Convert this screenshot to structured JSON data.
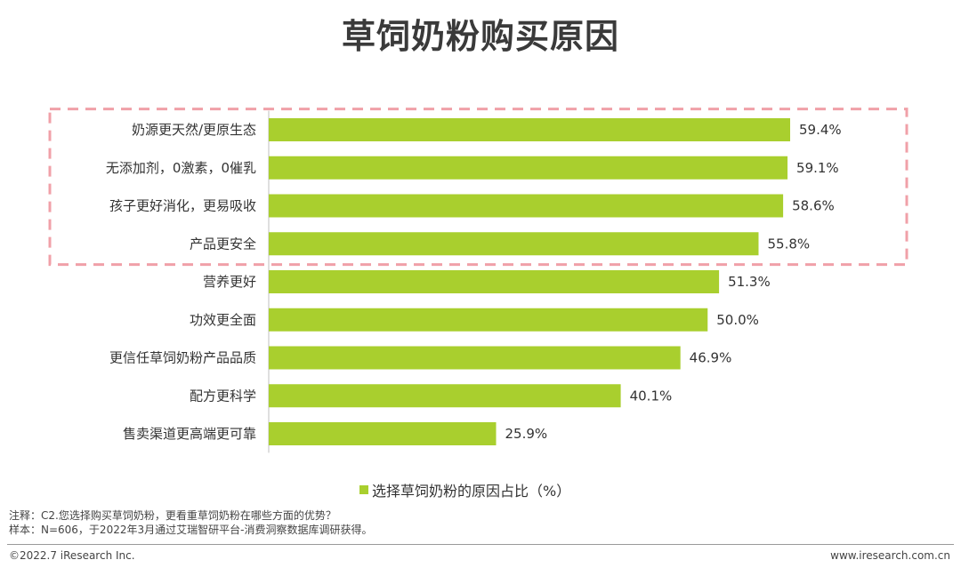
{
  "title": "草饲奶粉购买原因",
  "chart_data": {
    "type": "bar",
    "orientation": "horizontal",
    "categories": [
      "奶源更天然/更原生态",
      "无添加剂，0激素，0催乳",
      "孩子更好消化，更易吸收",
      "产品更安全",
      "营养更好",
      "功效更全面",
      "更信任草饲奶粉产品品质",
      "配方更科学",
      "售卖渠道更高端更可靠"
    ],
    "series": [
      {
        "name": "选择草饲奶粉的原因占比（%）",
        "values": [
          59.4,
          59.1,
          58.6,
          55.8,
          51.3,
          50.0,
          46.9,
          40.1,
          25.9
        ],
        "labels": [
          "59.4%",
          "59.1%",
          "58.6%",
          "55.8%",
          "51.3%",
          "50.0%",
          "46.9%",
          "40.1%",
          "25.9%"
        ]
      }
    ],
    "highlight": {
      "categories_index_range": [
        0,
        3
      ],
      "style": "dashed-box",
      "color": "#f0a0a8"
    },
    "bar_color": "#a9cf2e",
    "xlim": [
      0,
      100
    ],
    "legend": {
      "position": "bottom"
    },
    "grid": false
  },
  "notes": {
    "line1": "注释：C2.您选择购买草饲奶粉，更看重草饲奶粉在哪些方面的优势？",
    "line2": "样本：N=606，于2022年3月通过艾瑞智研平台-消费洞察数据库调研获得。"
  },
  "footer": {
    "copyright": "©2022.7 iResearch Inc.",
    "website": "www.iresearch.com.cn"
  }
}
